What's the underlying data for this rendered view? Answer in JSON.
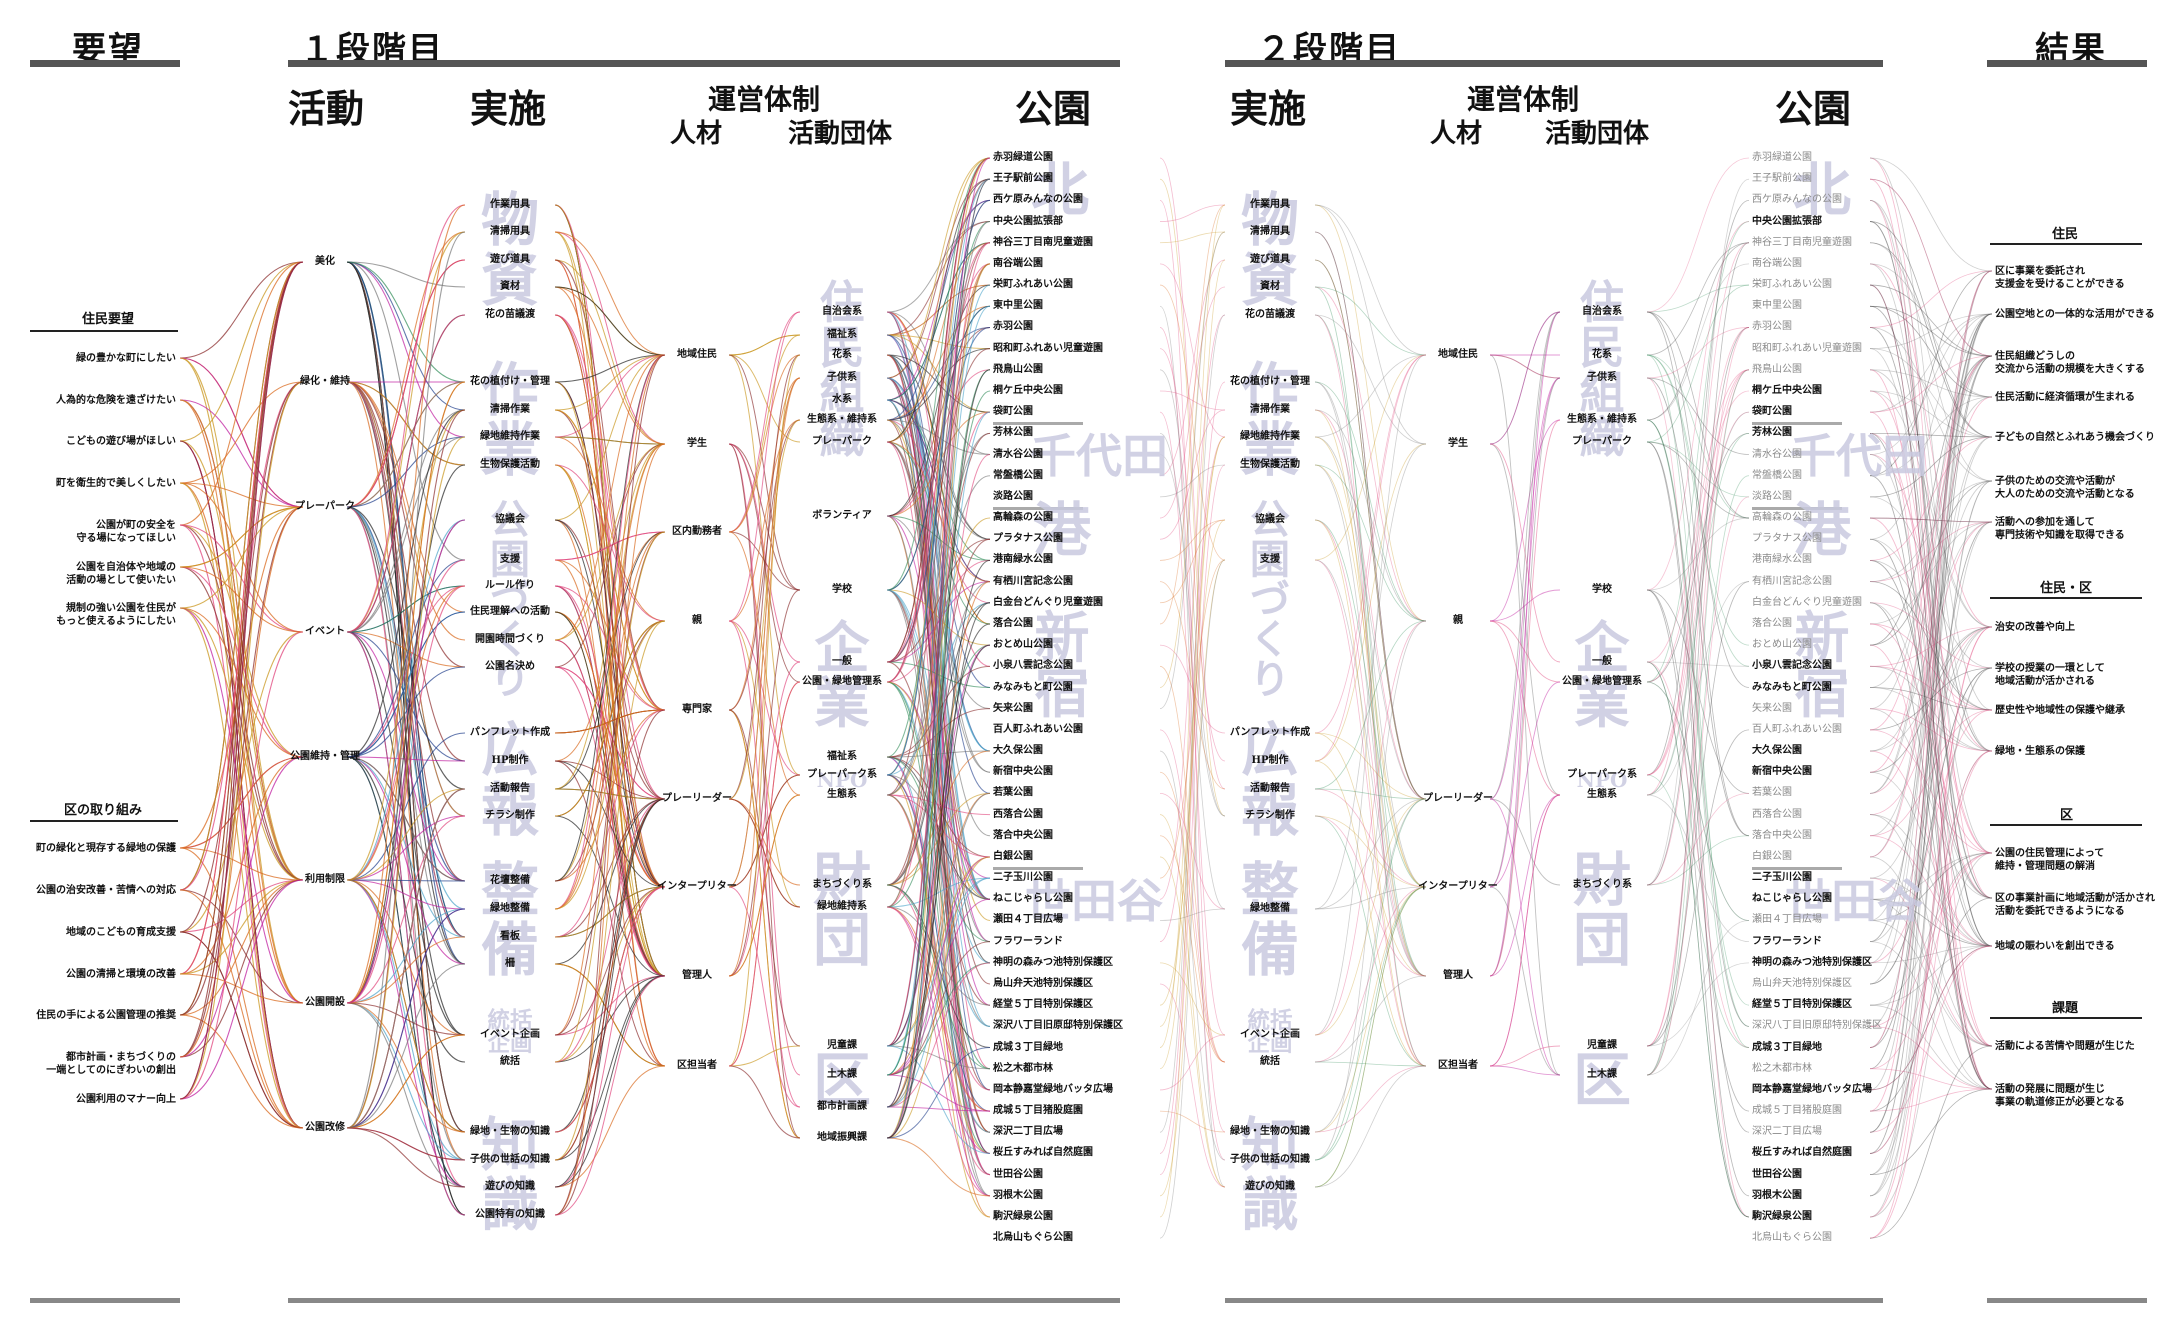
{
  "headers": {
    "demand": "要望",
    "stage1": "１段階目",
    "stage2": "２段階目",
    "result": "結果"
  },
  "columns": {
    "activity": "活動",
    "implement1": "実施",
    "org1": "運営体制",
    "people1": "人材",
    "groups1": "活動団体",
    "parks1": "公園",
    "implement2": "実施",
    "org2": "運営体制",
    "people2": "人材",
    "groups2": "活動団体",
    "parks2": "公園"
  },
  "demand": {
    "resident_title": "住民要望",
    "resident": [
      "緑の豊かな町にしたい",
      "人為的な危険を遠ざけたい",
      "こどもの遊び場がほしい",
      "町を衛生的で美しくしたい",
      "公園が町の安全を\n守る場になってほしい",
      "公園を自治体や地域の\n活動の場として使いたい",
      "規制の強い公園を住民が\nもっと使えるようにしたい"
    ],
    "ward_title": "区の取り組み",
    "ward": [
      "町の緑化と現存する緑地の保護",
      "公園の治安改善・苦情への対応",
      "地域のこどもの育成支援",
      "公園の清掃と環境の改善",
      "住民の手による公園管理の推奨",
      "都市計画・まちづくりの\n一端としてのにぎわいの創出",
      "公園利用のマナー向上"
    ]
  },
  "activities": [
    "美化",
    "緑化・維持",
    "プレーパーク",
    "イベント",
    "公園維持・管理",
    "利用制限",
    "公園開設",
    "公園改修"
  ],
  "implement1": [
    "作業用具",
    "清掃用具",
    "遊び道具",
    "資材",
    "花の苗議渡",
    "花の植付け・管理",
    "清掃作業",
    "緑地維持作業",
    "生物保護活動",
    "協議会",
    "支援",
    "ルール作り",
    "住民理解への活動",
    "開園時間づくり",
    "公園名決め",
    "パンフレット作成",
    "HP制作",
    "活動報告",
    "チラシ制作",
    "花壇整備",
    "緑地整備",
    "看板",
    "柵",
    "イベント企画",
    "統括",
    "緑地・生物の知識",
    "子供の世話の知識",
    "遊びの知識",
    "公園特有の知識"
  ],
  "implement1_watermarks": [
    "物資",
    "作業",
    "公園づくり",
    "広報",
    "整備",
    "統括企画",
    "知識"
  ],
  "people1": [
    "地域住民",
    "学生",
    "区内勤務者",
    "親",
    "専門家",
    "プレーリーダー",
    "インタープリター",
    "管理人",
    "区担当者"
  ],
  "groups1": [
    "自治会系",
    "福祉系",
    "花系",
    "子供系",
    "水系",
    "生態系・維持系",
    "プレーパーク",
    "ボランティア",
    "学校",
    "一般",
    "公園・緑地管理系",
    "福祉系",
    "プレーパーク系",
    "生態系",
    "まちづくり系",
    "緑地維持系",
    "児童課",
    "土木課",
    "都市計画課",
    "地域振興課"
  ],
  "groups1_watermarks": [
    "住民組織",
    "企業",
    "NPO",
    "財団",
    "区"
  ],
  "parks1": [
    "赤羽緑道公園",
    "王子駅前公園",
    "西ケ原みんなの公園",
    "中央公園拡張部",
    "神谷三丁目南児童遊園",
    "南谷端公園",
    "栄町ふれあい公園",
    "東中里公園",
    "赤羽公園",
    "昭和町ふれあい児童遊園",
    "飛鳥山公園",
    "桐ケ丘中央公園",
    "袋町公園",
    "芳林公園",
    "清水谷公園",
    "常盤橋公園",
    "淡路公園",
    "高輪森の公園",
    "プラタナス公園",
    "港南緑水公園",
    "有栖川宮記念公園",
    "白金台どんぐり児童遊園",
    "落合公園",
    "おとめ山公園",
    "小泉八雲記念公園",
    "みなみもと町公園",
    "矢来公園",
    "百人町ふれあい公園",
    "大久保公園",
    "新宿中央公園",
    "若葉公園",
    "西落合公園",
    "落合中央公園",
    "白銀公園",
    "二子玉川公園",
    "ねこじゃらし公園",
    "瀬田４丁目広場",
    "フラワーランド",
    "神明の森みつ池特別保護区",
    "烏山弁天池特別保護区",
    "経堂５丁目特別保護区",
    "深沢八丁目旧原邸特別保護区",
    "成城３丁目緑地",
    "松之木都市林",
    "岡本静嘉堂緑地バッタ広場",
    "成城５丁目猪股庭園",
    "深沢二丁目広場",
    "桜丘すみれば自然庭園",
    "世田谷公園",
    "羽根木公園",
    "駒沢緑泉公園",
    "北烏山もぐら公園"
  ],
  "parks_watermarks": [
    "北",
    "千代田",
    "港",
    "新宿",
    "世田谷"
  ],
  "implement2": [
    "作業用具",
    "清掃用具",
    "遊び道具",
    "資材",
    "花の苗議渡",
    "花の植付け・管理",
    "清掃作業",
    "緑地維持作業",
    "生物保護活動",
    "協議会",
    "支援",
    "パンフレット作成",
    "HP制作",
    "活動報告",
    "チラシ制作",
    "緑地整備",
    "イベント企画",
    "統括",
    "緑地・生物の知識",
    "子供の世話の知識",
    "遊びの知識"
  ],
  "implement2_watermarks": [
    "物資",
    "作業",
    "公園づくり",
    "広報",
    "整備",
    "統括企画",
    "知識"
  ],
  "people2": [
    "地域住民",
    "学生",
    "親",
    "プレーリーダー",
    "インタープリター",
    "管理人",
    "区担当者"
  ],
  "groups2": [
    "自治会系",
    "花系",
    "子供系",
    "生態系・維持系",
    "プレーパーク",
    "学校",
    "一般",
    "公園・緑地管理系",
    "プレーパーク系",
    "生態系",
    "まちづくり系",
    "児童課",
    "土木課"
  ],
  "groups2_watermarks": [
    "住民組織",
    "企業",
    "NPO",
    "財団",
    "区"
  ],
  "parks2_active": [
    false,
    false,
    false,
    true,
    false,
    false,
    false,
    false,
    false,
    false,
    false,
    true,
    true,
    true,
    false,
    false,
    false,
    false,
    false,
    false,
    false,
    false,
    false,
    false,
    true,
    true,
    false,
    false,
    true,
    true,
    false,
    false,
    false,
    false,
    true,
    true,
    false,
    true,
    true,
    false,
    true,
    false,
    true,
    false,
    true,
    false,
    false,
    true,
    true,
    true,
    true,
    false
  ],
  "result": {
    "resident_title": "住民",
    "resident": [
      "区に事業を委託され\n支援金を受けることができる",
      "公園空地との一体的な活用ができる",
      "住民組織どうしの\n交流から活動の規模を大きくする",
      "住民活動に経済循環が生まれる",
      "子どもの自然とふれあう機会づくり",
      "子供のための交流や活動が\n大人のための交流や活動となる",
      "活動への参加を通して\n専門技術や知識を取得できる"
    ],
    "both_title": "住民・区",
    "both": [
      "治安の改善や向上",
      "学校の授業の一環として\n地域活動が活かされる",
      "歴史性や地域性の保護や継承",
      "緑地・生態系の保護"
    ],
    "ward_title": "区",
    "ward": [
      "公園の住民管理によって\n維持・管理問題の解消",
      "区の事業計画に地域活動が活かされ\n活動を委託できるようになる",
      "地域の賑わいを創出できる"
    ],
    "issue_title": "課題",
    "issue": [
      "活動による苦情や問題が生じた",
      "活動の発展に問題が生じ\n事業の軌道修正が必要となる"
    ]
  },
  "colors": [
    "#e0447c",
    "#d96a1e",
    "#c9971f",
    "#2e8b57",
    "#1f3d8a",
    "#8b2e2e",
    "#777777",
    "#c020a0",
    "#4aa3c9",
    "#222222"
  ]
}
